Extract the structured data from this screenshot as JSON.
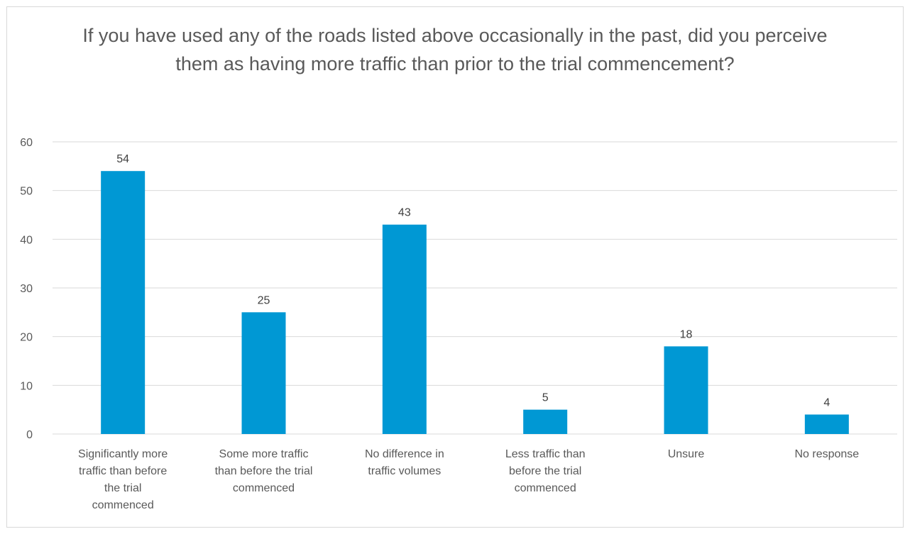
{
  "chart_data": {
    "type": "bar",
    "title": "If you have used any of the roads listed above occasionally in the past, did you perceive them as having more traffic than prior to the trial commencement?",
    "categories": [
      [
        "Significantly more",
        "traffic than before",
        "the trial",
        "commenced"
      ],
      [
        "Some more traffic",
        "than before the trial",
        "commenced"
      ],
      [
        "No difference in",
        "traffic volumes"
      ],
      [
        "Less traffic than",
        "before the trial",
        "commenced"
      ],
      [
        "Unsure"
      ],
      [
        "No response"
      ]
    ],
    "values": [
      54,
      25,
      43,
      5,
      18,
      4
    ],
    "data_labels": [
      "54",
      "25",
      "43",
      "5",
      "18",
      "4"
    ],
    "ylim": [
      0,
      60
    ],
    "yticks": [
      0,
      10,
      20,
      30,
      40,
      50,
      60
    ],
    "ytick_labels": [
      "0",
      "10",
      "20",
      "30",
      "40",
      "50",
      "60"
    ],
    "grid": true,
    "legend": "none",
    "xlabel": "",
    "ylabel": "",
    "colors": {
      "bar": "#0098d4",
      "grid": "#d9d9d9",
      "axis_text": "#595959",
      "title_text": "#595959"
    }
  }
}
